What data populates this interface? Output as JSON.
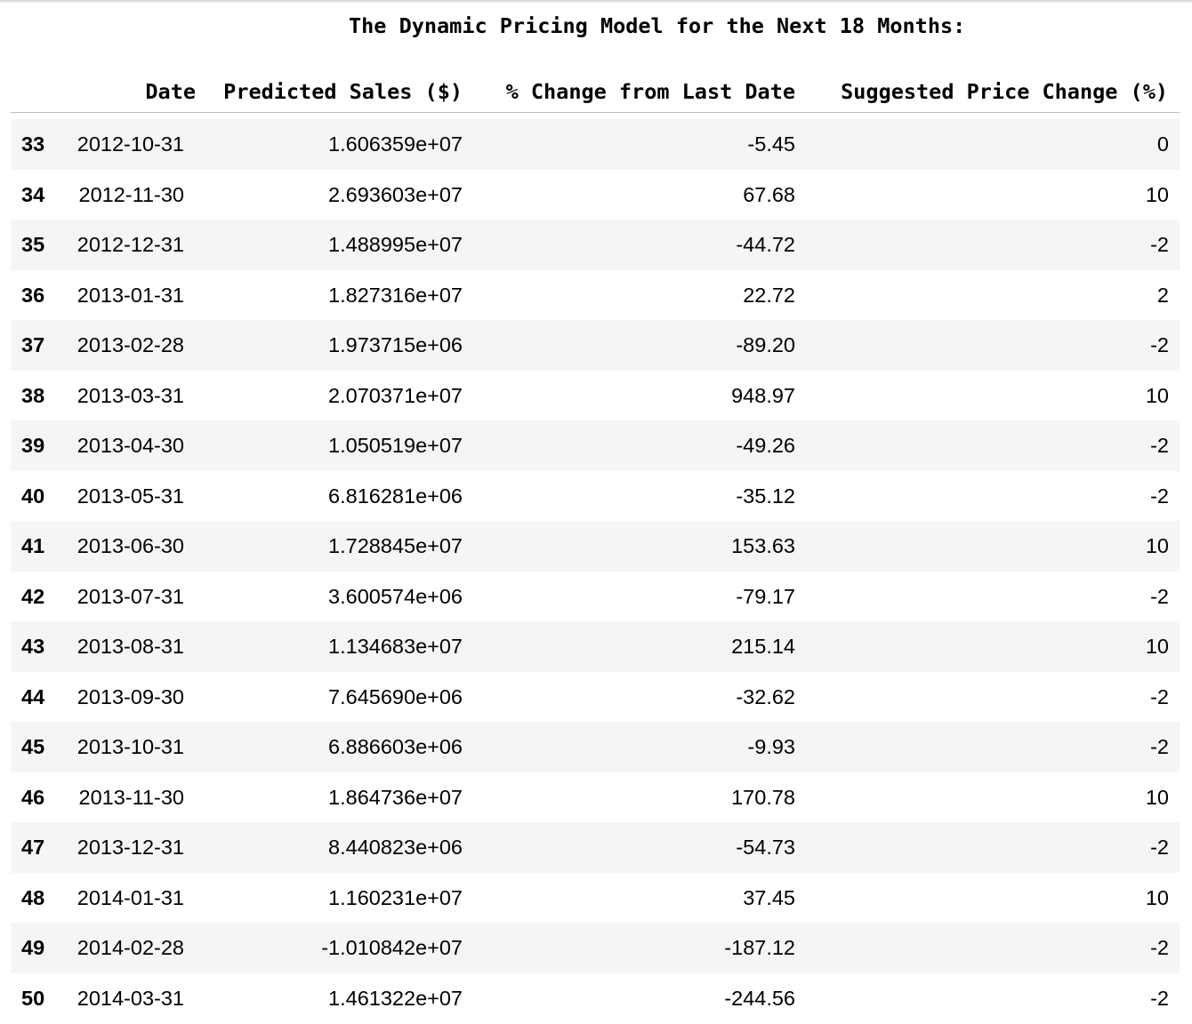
{
  "title": "The Dynamic Pricing Model for the Next 18 Months:",
  "columns": {
    "date": "Date",
    "sales": "Predicted Sales ($)",
    "change": "% Change from Last Date",
    "price": "Suggested Price Change (%)"
  },
  "rows": [
    {
      "index": "33",
      "date": "2012-10-31",
      "sales": "1.606359e+07",
      "change": "-5.45",
      "price": "0"
    },
    {
      "index": "34",
      "date": "2012-11-30",
      "sales": "2.693603e+07",
      "change": "67.68",
      "price": "10"
    },
    {
      "index": "35",
      "date": "2012-12-31",
      "sales": "1.488995e+07",
      "change": "-44.72",
      "price": "-2"
    },
    {
      "index": "36",
      "date": "2013-01-31",
      "sales": "1.827316e+07",
      "change": "22.72",
      "price": "2"
    },
    {
      "index": "37",
      "date": "2013-02-28",
      "sales": "1.973715e+06",
      "change": "-89.20",
      "price": "-2"
    },
    {
      "index": "38",
      "date": "2013-03-31",
      "sales": "2.070371e+07",
      "change": "948.97",
      "price": "10"
    },
    {
      "index": "39",
      "date": "2013-04-30",
      "sales": "1.050519e+07",
      "change": "-49.26",
      "price": "-2"
    },
    {
      "index": "40",
      "date": "2013-05-31",
      "sales": "6.816281e+06",
      "change": "-35.12",
      "price": "-2"
    },
    {
      "index": "41",
      "date": "2013-06-30",
      "sales": "1.728845e+07",
      "change": "153.63",
      "price": "10"
    },
    {
      "index": "42",
      "date": "2013-07-31",
      "sales": "3.600574e+06",
      "change": "-79.17",
      "price": "-2"
    },
    {
      "index": "43",
      "date": "2013-08-31",
      "sales": "1.134683e+07",
      "change": "215.14",
      "price": "10"
    },
    {
      "index": "44",
      "date": "2013-09-30",
      "sales": "7.645690e+06",
      "change": "-32.62",
      "price": "-2"
    },
    {
      "index": "45",
      "date": "2013-10-31",
      "sales": "6.886603e+06",
      "change": "-9.93",
      "price": "-2"
    },
    {
      "index": "46",
      "date": "2013-11-30",
      "sales": "1.864736e+07",
      "change": "170.78",
      "price": "10"
    },
    {
      "index": "47",
      "date": "2013-12-31",
      "sales": "8.440823e+06",
      "change": "-54.73",
      "price": "-2"
    },
    {
      "index": "48",
      "date": "2014-01-31",
      "sales": "1.160231e+07",
      "change": "37.45",
      "price": "10"
    },
    {
      "index": "49",
      "date": "2014-02-28",
      "sales": "-1.010842e+07",
      "change": "-187.12",
      "price": "-2"
    },
    {
      "index": "50",
      "date": "2014-03-31",
      "sales": "1.461322e+07",
      "change": "-244.56",
      "price": "-2"
    }
  ]
}
